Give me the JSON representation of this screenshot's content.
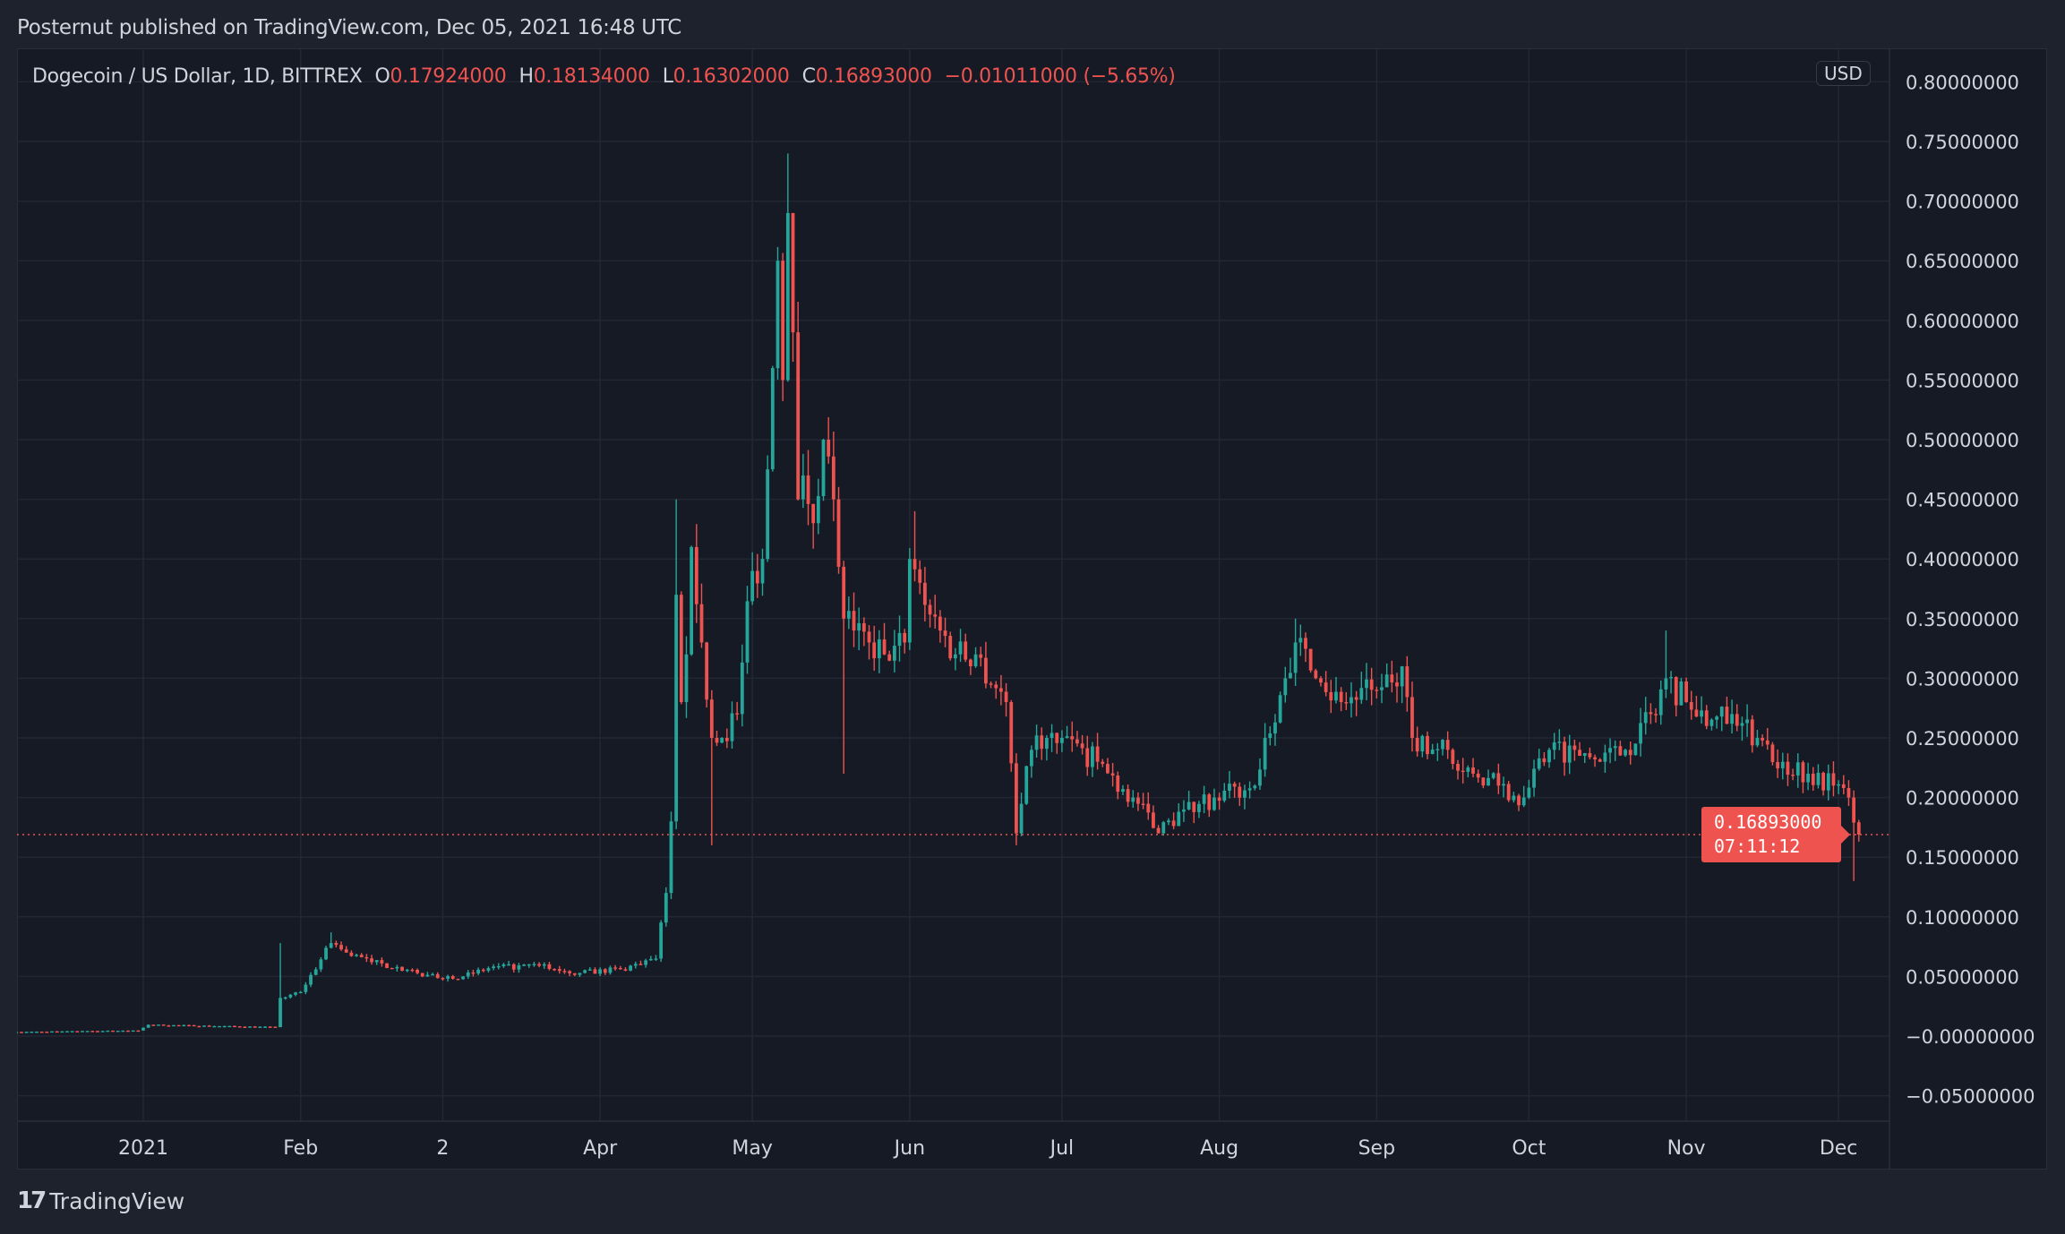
{
  "header": {
    "published": "Posternut published on TradingView.com, Dec 05, 2021 16:48 UTC"
  },
  "legend": {
    "symbol": "Dogecoin / US Dollar, 1D, BITTREX",
    "o_label": "O",
    "o": "0.17924000",
    "h_label": "H",
    "h": "0.18134000",
    "l_label": "L",
    "l": "0.16302000",
    "c_label": "C",
    "c": "0.16893000",
    "change": "−0.01011000 (−5.65%)"
  },
  "currency_badge": "USD",
  "last_price": {
    "price": "0.16893000",
    "countdown": "07:11:12"
  },
  "footer": {
    "logo_text": "TradingView"
  },
  "colors": {
    "up": "#26a69a",
    "down": "#ef5350",
    "background": "#161a25",
    "grid": "#232734"
  },
  "chart_data": {
    "type": "candlestick",
    "title": "Dogecoin / US Dollar, 1D, BITTREX",
    "ylim": [
      -0.07,
      0.82
    ],
    "grid": true,
    "y_ticks": [
      "0.80000000",
      "0.75000000",
      "0.70000000",
      "0.65000000",
      "0.60000000",
      "0.55000000",
      "0.50000000",
      "0.45000000",
      "0.40000000",
      "0.35000000",
      "0.30000000",
      "0.25000000",
      "0.20000000",
      "0.15000000",
      "0.10000000",
      "0.05000000",
      "−0.00000000",
      "−0.05000000"
    ],
    "y_tick_values": [
      0.8,
      0.75,
      0.7,
      0.65,
      0.6,
      0.55,
      0.5,
      0.45,
      0.4,
      0.35,
      0.3,
      0.25,
      0.2,
      0.15,
      0.1,
      0.05,
      0,
      -0.05
    ],
    "x_ticks": [
      {
        "label": "2021",
        "date": "2021-01-01"
      },
      {
        "label": "Feb",
        "date": "2021-02-01"
      },
      {
        "label": "2",
        "date": "2021-03-01"
      },
      {
        "label": "Apr",
        "date": "2021-04-01"
      },
      {
        "label": "May",
        "date": "2021-05-01"
      },
      {
        "label": "Jun",
        "date": "2021-06-01"
      },
      {
        "label": "Jul",
        "date": "2021-07-01"
      },
      {
        "label": "Aug",
        "date": "2021-08-01"
      },
      {
        "label": "Sep",
        "date": "2021-09-01"
      },
      {
        "label": "Oct",
        "date": "2021-10-01"
      },
      {
        "label": "Nov",
        "date": "2021-11-01"
      },
      {
        "label": "Dec",
        "date": "2021-12-01"
      }
    ],
    "approx_closes": [
      [
        "2020-12-07",
        0.0035
      ],
      [
        "2020-12-31",
        0.0047
      ],
      [
        "2021-01-02",
        0.0095
      ],
      [
        "2021-01-27",
        0.0075
      ],
      [
        "2021-01-28",
        0.032
      ],
      [
        "2021-02-01",
        0.037
      ],
      [
        "2021-02-07",
        0.078
      ],
      [
        "2021-02-10",
        0.07
      ],
      [
        "2021-02-15",
        0.062
      ],
      [
        "2021-02-20",
        0.058
      ],
      [
        "2021-02-25",
        0.05
      ],
      [
        "2021-03-05",
        0.05
      ],
      [
        "2021-03-10",
        0.057
      ],
      [
        "2021-03-20",
        0.059
      ],
      [
        "2021-03-28",
        0.053
      ],
      [
        "2021-04-05",
        0.056
      ],
      [
        "2021-04-12",
        0.065
      ],
      [
        "2021-04-14",
        0.12
      ],
      [
        "2021-04-15",
        0.18
      ],
      [
        "2021-04-16",
        0.37
      ],
      [
        "2021-04-17",
        0.28
      ],
      [
        "2021-04-18",
        0.32
      ],
      [
        "2021-04-19",
        0.41
      ],
      [
        "2021-04-21",
        0.33
      ],
      [
        "2021-04-23",
        0.25
      ],
      [
        "2021-04-25",
        0.25
      ],
      [
        "2021-04-28",
        0.27
      ],
      [
        "2021-05-01",
        0.39
      ],
      [
        "2021-05-03",
        0.4
      ],
      [
        "2021-05-05",
        0.56
      ],
      [
        "2021-05-06",
        0.65
      ],
      [
        "2021-05-07",
        0.55
      ],
      [
        "2021-05-08",
        0.69
      ],
      [
        "2021-05-09",
        0.59
      ],
      [
        "2021-05-10",
        0.45
      ],
      [
        "2021-05-11",
        0.47
      ],
      [
        "2021-05-13",
        0.43
      ],
      [
        "2021-05-15",
        0.5
      ],
      [
        "2021-05-17",
        0.45
      ],
      [
        "2021-05-19",
        0.35
      ],
      [
        "2021-05-21",
        0.34
      ],
      [
        "2021-05-24",
        0.33
      ],
      [
        "2021-05-27",
        0.32
      ],
      [
        "2021-05-31",
        0.33
      ],
      [
        "2021-06-01",
        0.4
      ],
      [
        "2021-06-03",
        0.38
      ],
      [
        "2021-06-07",
        0.34
      ],
      [
        "2021-06-10",
        0.32
      ],
      [
        "2021-06-14",
        0.32
      ],
      [
        "2021-06-20",
        0.28
      ],
      [
        "2021-06-22",
        0.17
      ],
      [
        "2021-06-25",
        0.24
      ],
      [
        "2021-06-28",
        0.25
      ],
      [
        "2021-07-01",
        0.25
      ],
      [
        "2021-07-08",
        0.23
      ],
      [
        "2021-07-15",
        0.2
      ],
      [
        "2021-07-20",
        0.17
      ],
      [
        "2021-07-25",
        0.19
      ],
      [
        "2021-07-31",
        0.2
      ],
      [
        "2021-08-08",
        0.21
      ],
      [
        "2021-08-10",
        0.25
      ],
      [
        "2021-08-14",
        0.3
      ],
      [
        "2021-08-16",
        0.33
      ],
      [
        "2021-08-20",
        0.3
      ],
      [
        "2021-08-25",
        0.28
      ],
      [
        "2021-09-01",
        0.29
      ],
      [
        "2021-09-06",
        0.31
      ],
      [
        "2021-09-08",
        0.25
      ],
      [
        "2021-09-15",
        0.24
      ],
      [
        "2021-09-20",
        0.22
      ],
      [
        "2021-09-25",
        0.21
      ],
      [
        "2021-09-30",
        0.2
      ],
      [
        "2021-10-05",
        0.24
      ],
      [
        "2021-10-10",
        0.24
      ],
      [
        "2021-10-15",
        0.23
      ],
      [
        "2021-10-20",
        0.24
      ],
      [
        "2021-10-25",
        0.27
      ],
      [
        "2021-10-28",
        0.3
      ],
      [
        "2021-11-01",
        0.28
      ],
      [
        "2021-11-05",
        0.26
      ],
      [
        "2021-11-10",
        0.27
      ],
      [
        "2021-11-15",
        0.25
      ],
      [
        "2021-11-20",
        0.23
      ],
      [
        "2021-11-25",
        0.22
      ],
      [
        "2021-11-30",
        0.21
      ],
      [
        "2021-12-03",
        0.2
      ],
      [
        "2021-12-04",
        0.179
      ],
      [
        "2021-12-05",
        0.16893
      ]
    ],
    "notable_highs": [
      [
        "2021-01-28",
        0.078
      ],
      [
        "2021-02-07",
        0.087
      ],
      [
        "2021-04-16",
        0.45
      ],
      [
        "2021-05-08",
        0.74
      ],
      [
        "2021-06-02",
        0.44
      ],
      [
        "2021-08-16",
        0.35
      ],
      [
        "2021-10-28",
        0.34
      ]
    ],
    "notable_lows": [
      [
        "2021-04-23",
        0.16
      ],
      [
        "2021-05-19",
        0.22
      ],
      [
        "2021-06-22",
        0.16
      ],
      [
        "2021-12-04",
        0.13
      ]
    ],
    "last_candle": {
      "date": "2021-12-05",
      "open": 0.17924,
      "high": 0.18134,
      "low": 0.16302,
      "close": 0.16893
    }
  }
}
